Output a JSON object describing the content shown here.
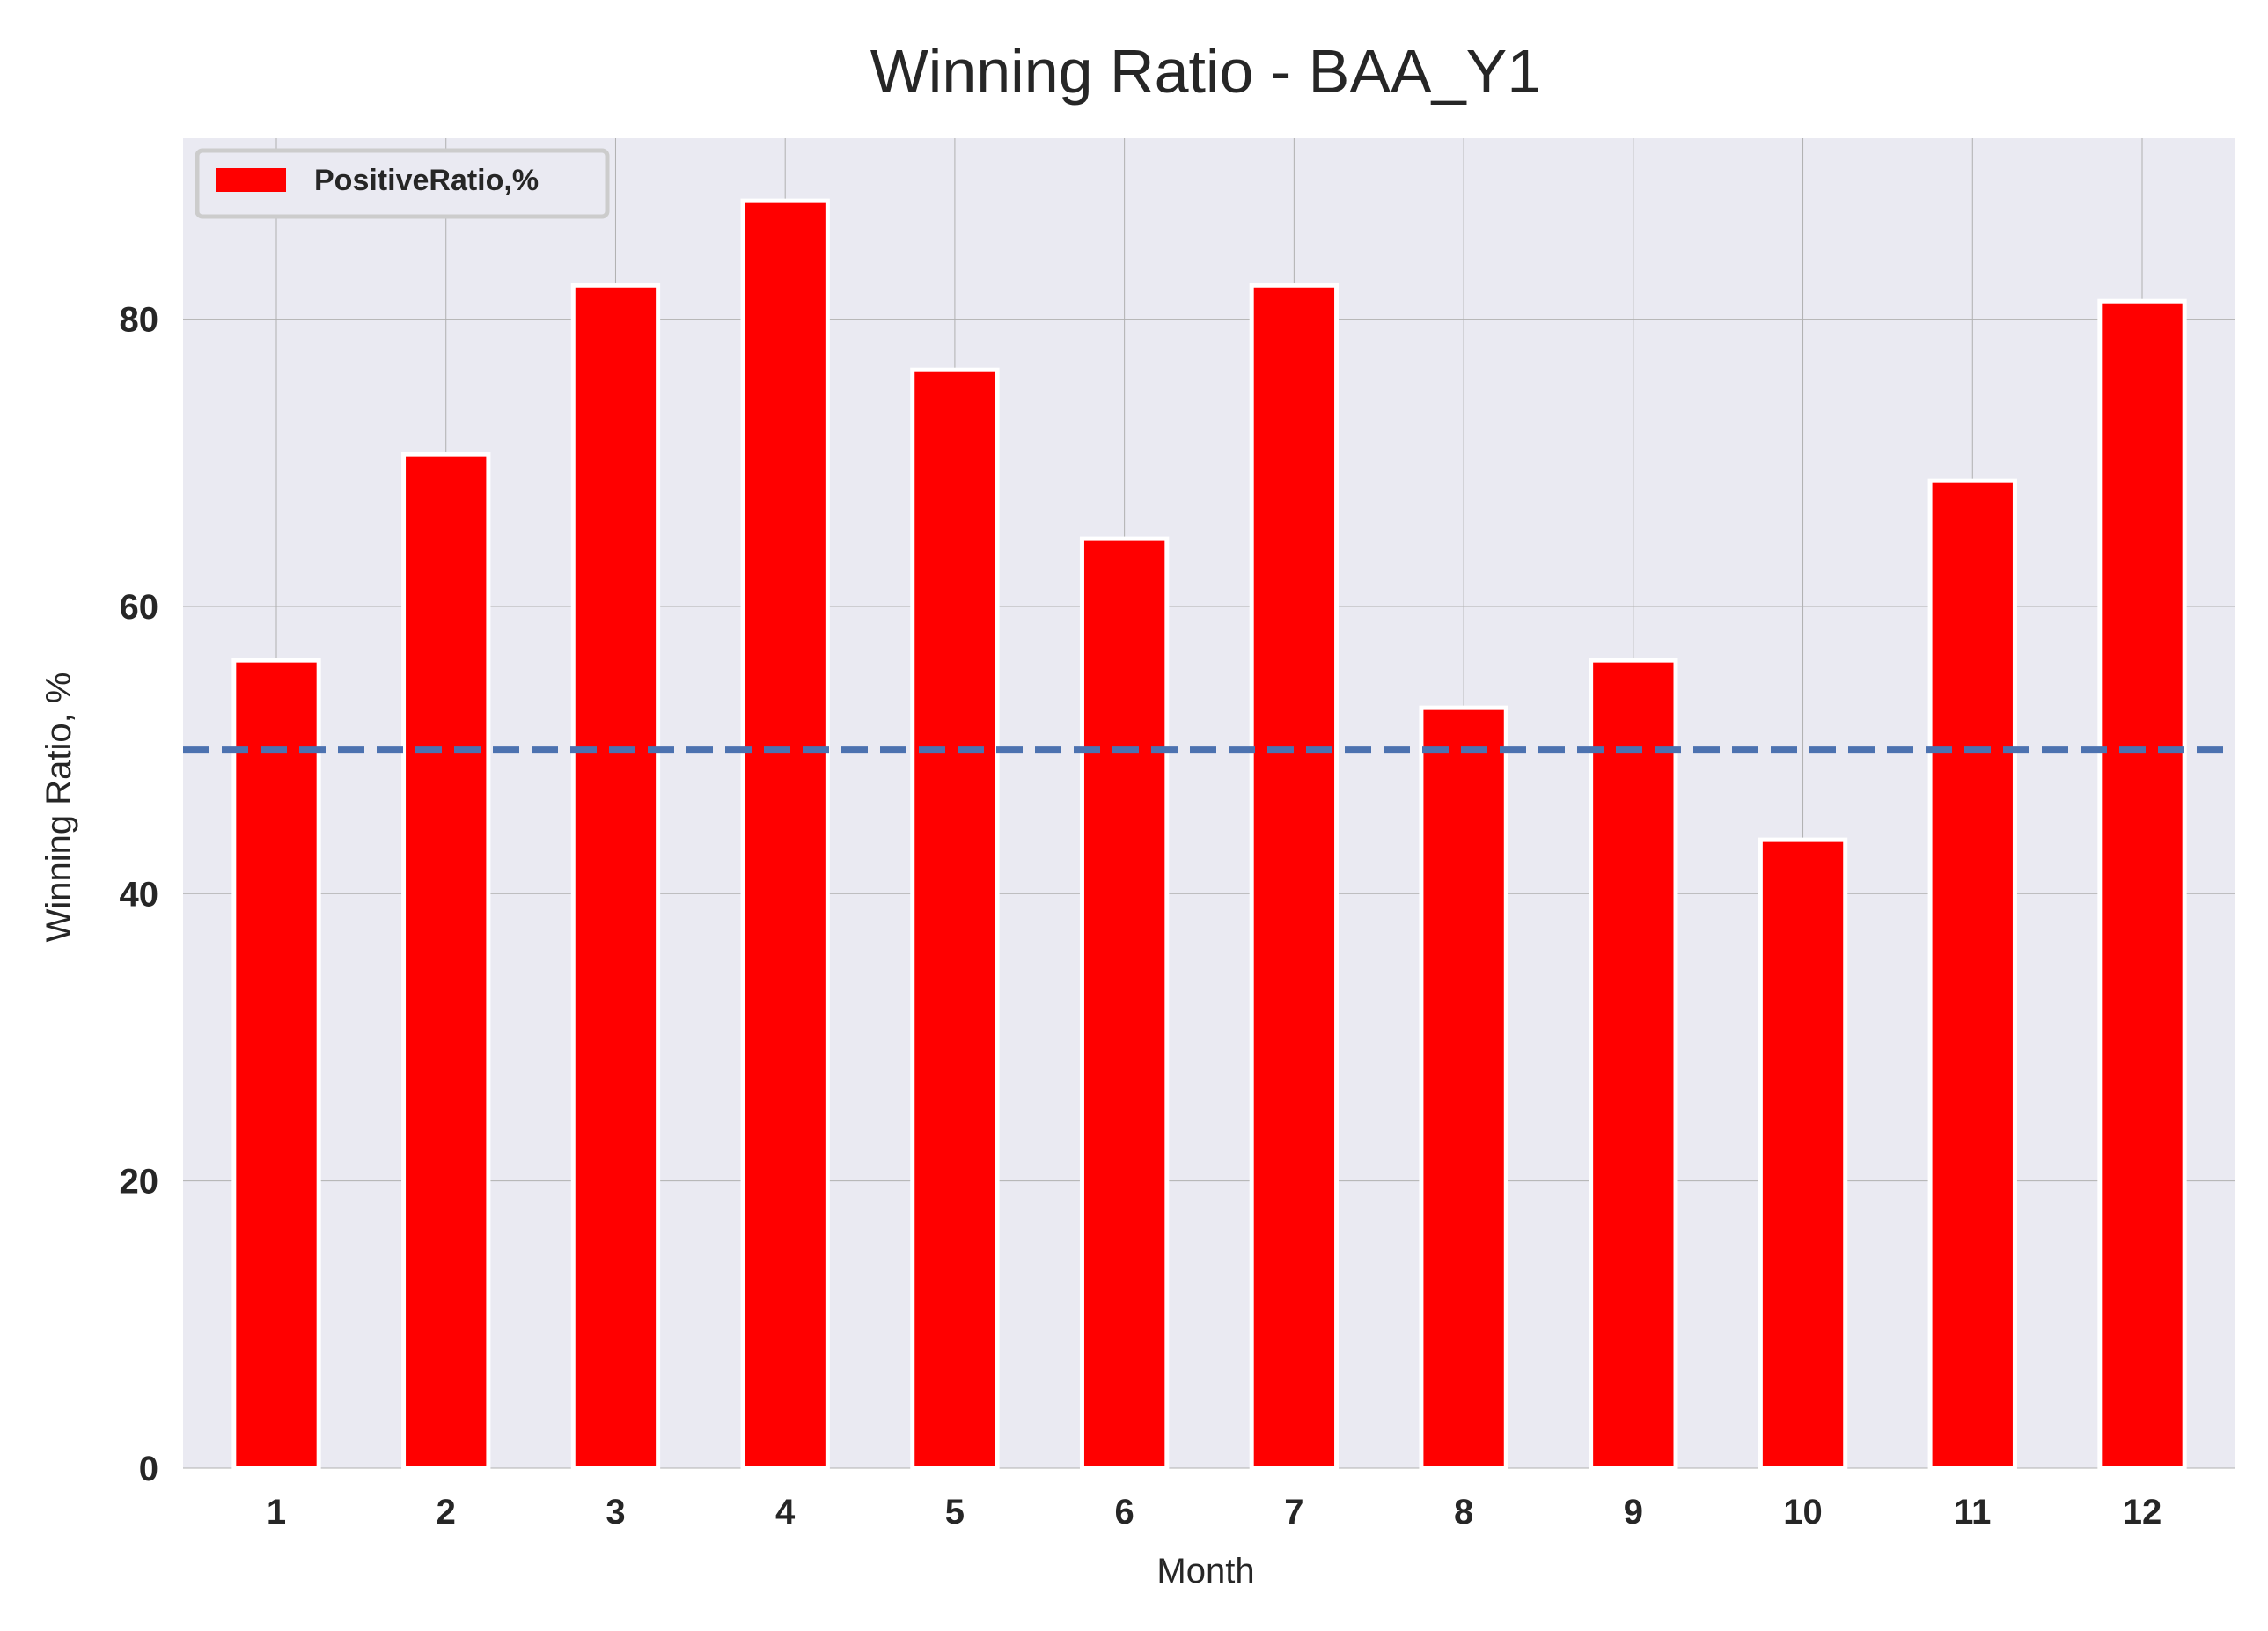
{
  "chart_data": {
    "type": "bar",
    "title": "Winning Ratio - BAA_Y1",
    "xlabel": "Month",
    "ylabel": "Winning Ratio, %",
    "categories": [
      "1",
      "2",
      "3",
      "4",
      "5",
      "6",
      "7",
      "8",
      "9",
      "10",
      "11",
      "12"
    ],
    "series": [
      {
        "name": "PositiveRatio,%",
        "values": [
          56.25,
          70.59,
          82.35,
          88.24,
          76.47,
          64.71,
          82.35,
          52.94,
          56.25,
          43.75,
          68.75,
          81.25
        ]
      }
    ],
    "reference_line": {
      "y": 50,
      "style": "dashed",
      "color": "#4c72b0"
    },
    "ylim": [
      0,
      92.6
    ],
    "yticks": [
      0,
      20,
      40,
      60,
      80
    ],
    "grid": true,
    "legend": "top-left",
    "colors": {
      "bar": "#ff0000",
      "plot_background": "#eaeaf2",
      "grid": "#b0b0b0"
    }
  }
}
